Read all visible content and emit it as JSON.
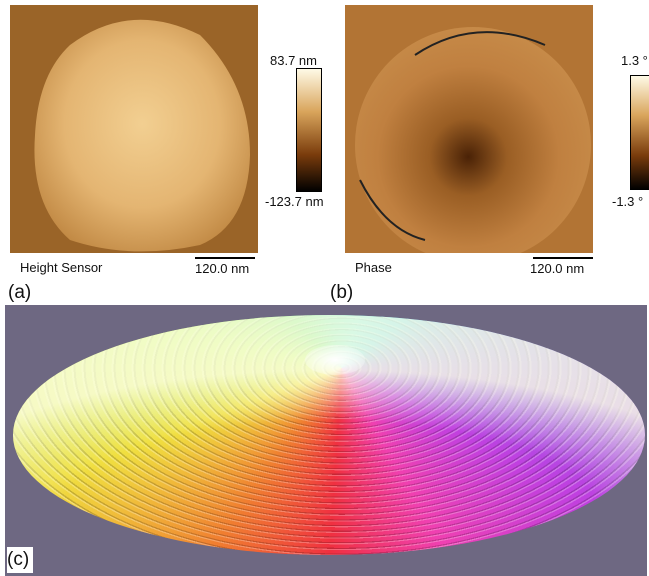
{
  "panels": [
    {
      "label": "(a)",
      "caption": "Height Sensor",
      "scale_bar": "120.0 nm",
      "colorbar": {
        "max": "83.7 nm",
        "min": "-123.7 nm"
      }
    },
    {
      "label": "(b)",
      "caption": "Phase",
      "scale_bar": "120.0 nm",
      "colorbar": {
        "max": "1.3 °",
        "min": "-1.3 °"
      }
    },
    {
      "label": "(c)"
    }
  ]
}
